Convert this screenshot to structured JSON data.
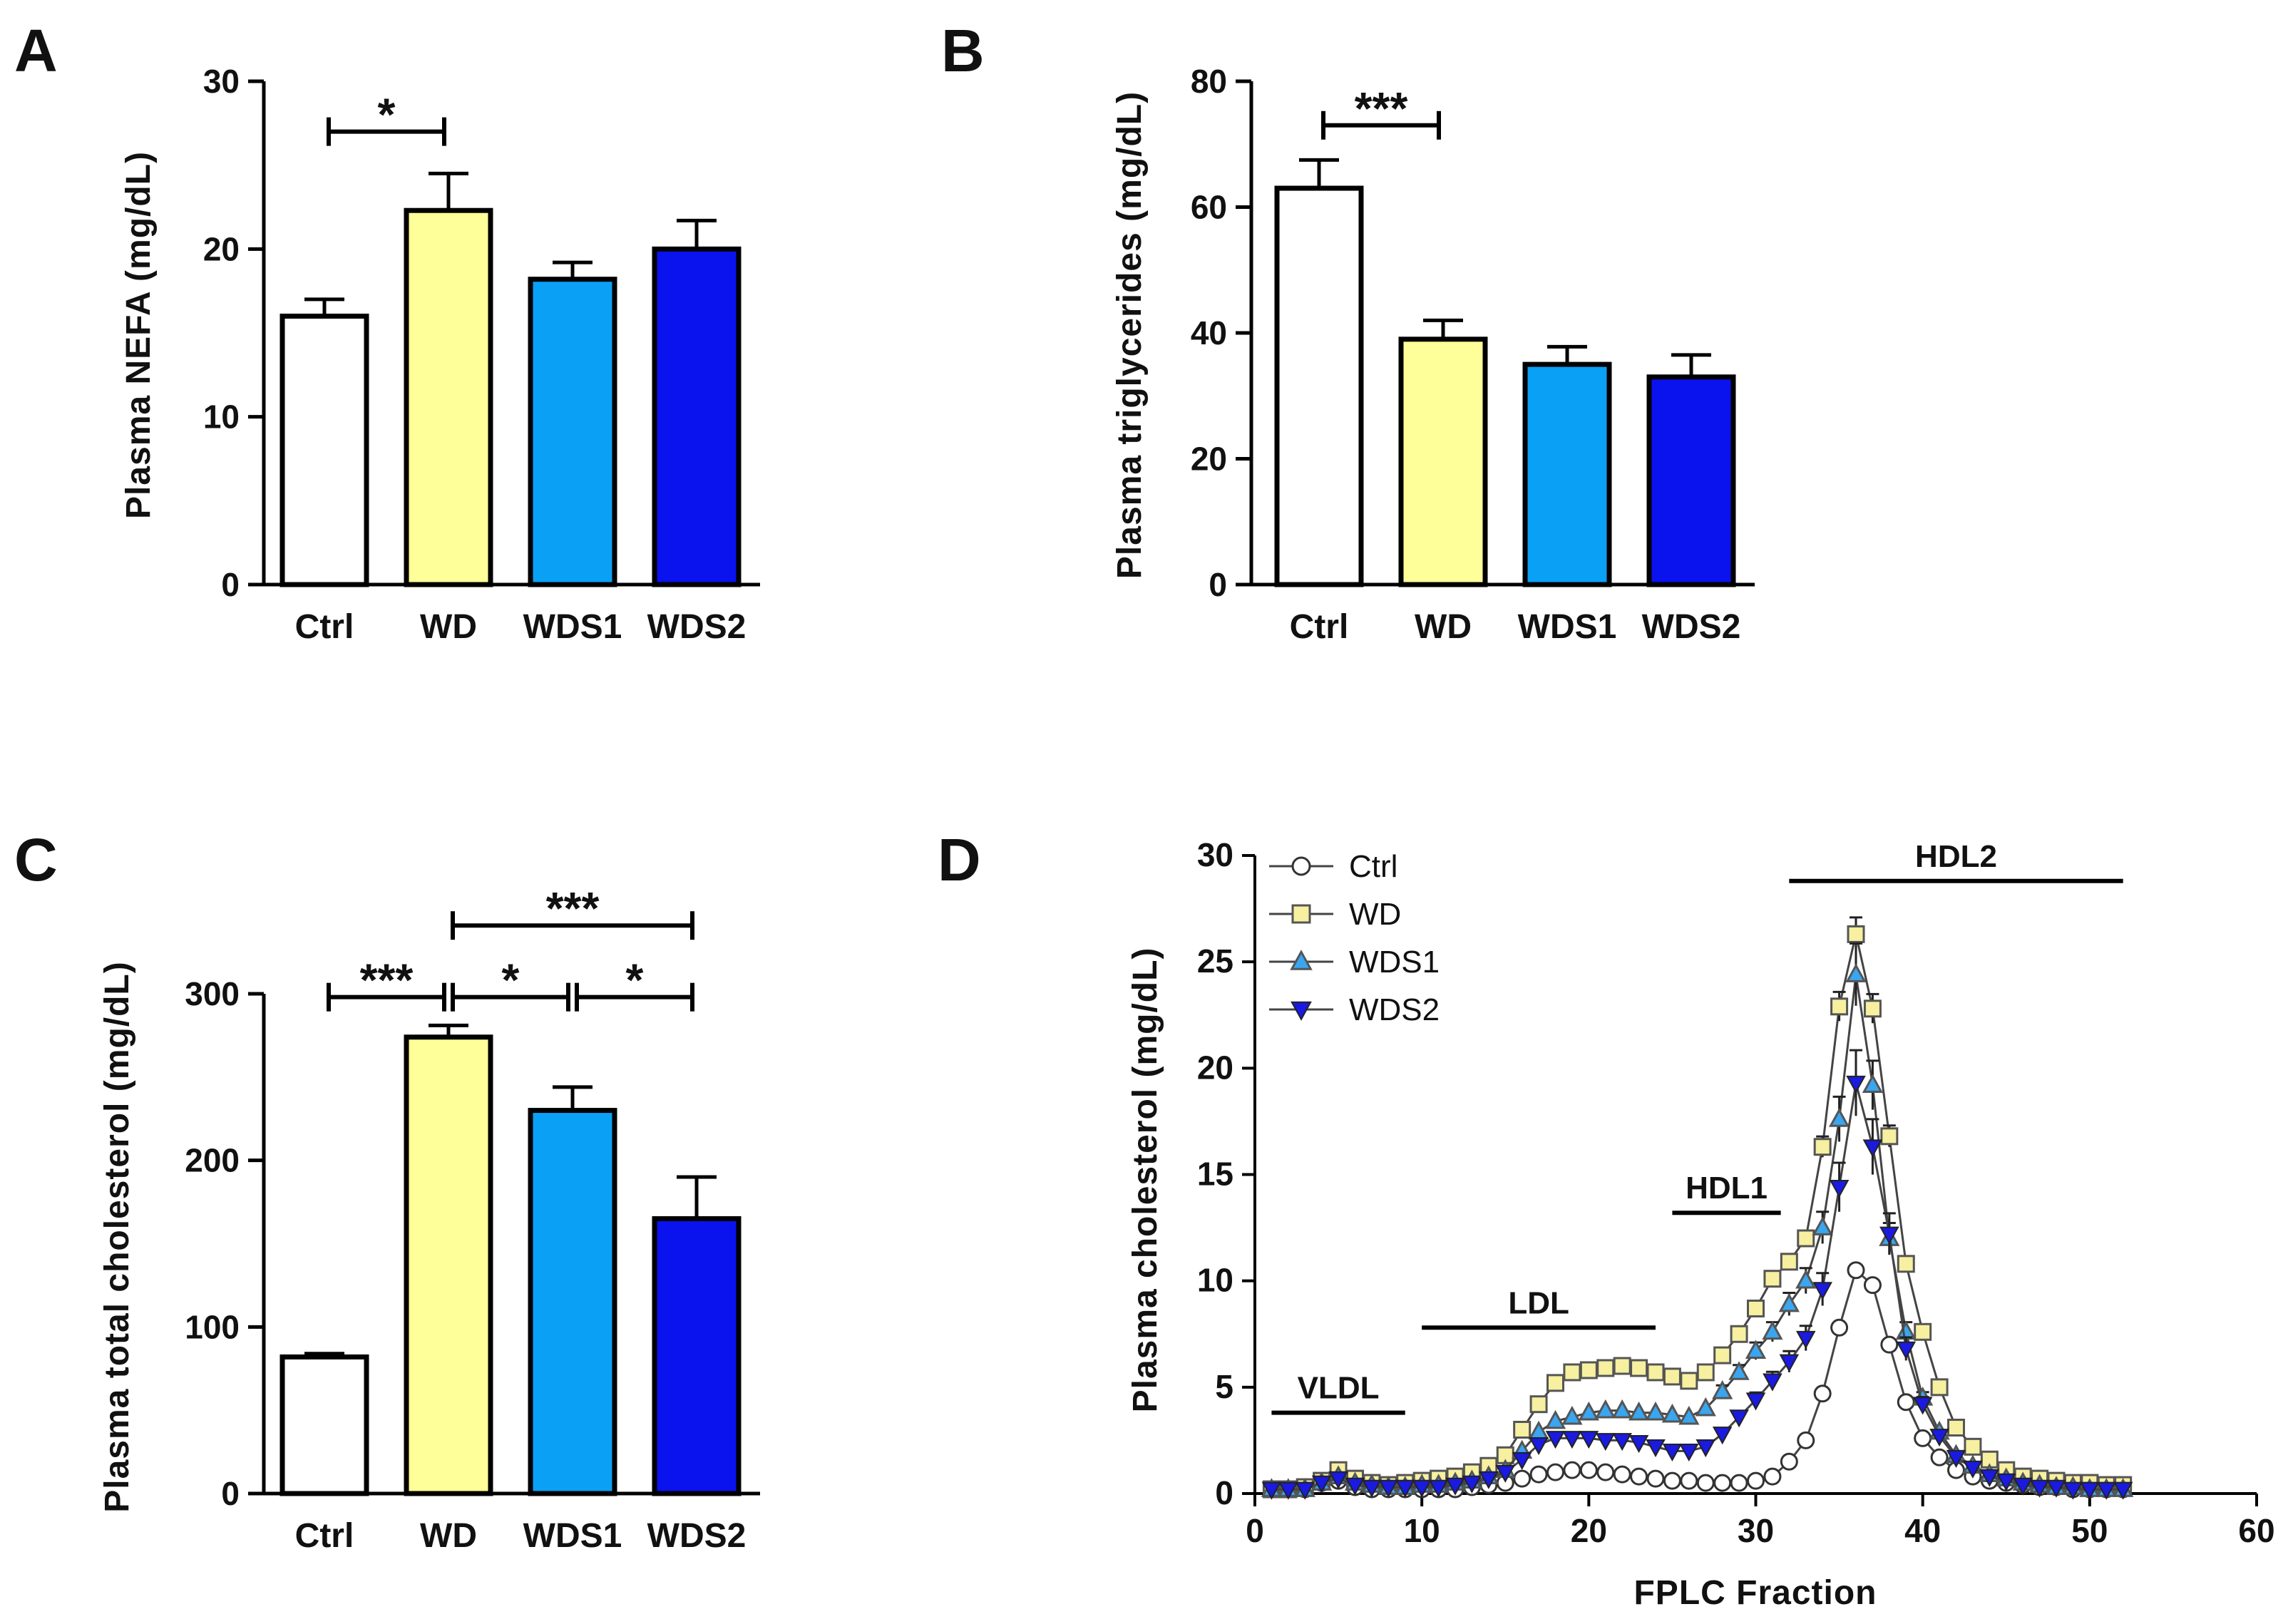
{
  "colors": {
    "Ctrl": "#ffffff",
    "WD": "#ffff99",
    "WDS1": "#0aa0f5",
    "WDS2": "#0a12ee",
    "WD_marker": "#f6f0a0",
    "WDS1_marker": "#3aa6f0",
    "WDS2_marker": "#1a1ae0",
    "axis": "#000000"
  },
  "chart_data": [
    {
      "panel": "A",
      "type": "bar",
      "categories": [
        "Ctrl",
        "WD",
        "WDS1",
        "WDS2"
      ],
      "values": [
        16,
        22.3,
        18.2,
        20
      ],
      "errors": [
        1,
        2.2,
        1,
        1.7
      ],
      "ylabel": "Plasma NEFA (mg/dL)",
      "ylim": [
        0,
        30
      ],
      "yticks": [
        0,
        10,
        20,
        30
      ],
      "significance": [
        {
          "from": 0,
          "to": 1,
          "label": "*",
          "level": 27
        }
      ]
    },
    {
      "panel": "B",
      "type": "bar",
      "categories": [
        "Ctrl",
        "WD",
        "WDS1",
        "WDS2"
      ],
      "values": [
        63,
        39,
        35,
        33
      ],
      "errors": [
        4.5,
        3,
        2.8,
        3.5
      ],
      "ylabel": "Plasma triglycerides (mg/dL)",
      "ylim": [
        0,
        80
      ],
      "yticks": [
        0,
        20,
        40,
        60,
        80
      ],
      "significance": [
        {
          "from": 0,
          "to": 1,
          "label": "***",
          "level": 73
        }
      ]
    },
    {
      "panel": "C",
      "type": "bar",
      "categories": [
        "Ctrl",
        "WD",
        "WDS1",
        "WDS2"
      ],
      "values": [
        82,
        274,
        230,
        165
      ],
      "errors": [
        2,
        7,
        14,
        25
      ],
      "ylabel": "Plasma total cholesterol (mg/dL)",
      "ylim": [
        0,
        300
      ],
      "yticks": [
        0,
        100,
        200,
        300
      ],
      "significance": [
        {
          "from": 0,
          "to": 1,
          "label": "***",
          "level": 298
        },
        {
          "from": 1,
          "to": 2,
          "label": "*",
          "level": 298
        },
        {
          "from": 2,
          "to": 3,
          "label": "*",
          "level": 298
        },
        {
          "from": 1,
          "to": 3,
          "label": "***",
          "level": 341
        }
      ]
    },
    {
      "panel": "D",
      "type": "line",
      "xlabel": "FPLC Fraction",
      "ylabel": "Plasma cholesterol (mg/dL)",
      "xlim": [
        0,
        60
      ],
      "ylim": [
        0,
        30
      ],
      "xticks": [
        0,
        10,
        20,
        30,
        40,
        50,
        60
      ],
      "yticks": [
        0,
        5,
        10,
        15,
        20,
        25,
        30
      ],
      "legend": [
        "Ctrl",
        "WD",
        "WDS1",
        "WDS2"
      ],
      "regions": [
        {
          "label": "VLDL",
          "x_start": 1,
          "x_end": 9,
          "level": 3.8
        },
        {
          "label": "LDL",
          "x_start": 10,
          "x_end": 24,
          "level": 7.8
        },
        {
          "label": "HDL1",
          "x_start": 25,
          "x_end": 31.5,
          "level": 13.2
        },
        {
          "label": "HDL2",
          "x_start": 32,
          "x_end": 52,
          "level": 28.8
        }
      ],
      "x": [
        1,
        2,
        3,
        4,
        5,
        6,
        7,
        8,
        9,
        10,
        11,
        12,
        13,
        14,
        15,
        16,
        17,
        18,
        19,
        20,
        21,
        22,
        23,
        24,
        25,
        26,
        27,
        28,
        29,
        30,
        31,
        32,
        33,
        34,
        35,
        36,
        37,
        38,
        39,
        40,
        41,
        42,
        43,
        44,
        45,
        46,
        47,
        48,
        49,
        50,
        51,
        52
      ],
      "series": [
        {
          "name": "Ctrl",
          "marker": "circle",
          "values": [
            0.2,
            0.2,
            0.2,
            0.5,
            0.6,
            0.3,
            0.2,
            0.2,
            0.2,
            0.2,
            0.2,
            0.2,
            0.3,
            0.4,
            0.5,
            0.7,
            0.9,
            1.0,
            1.1,
            1.1,
            1.0,
            0.9,
            0.8,
            0.7,
            0.6,
            0.6,
            0.5,
            0.5,
            0.5,
            0.6,
            0.8,
            1.5,
            2.5,
            4.7,
            7.8,
            10.5,
            9.8,
            7.0,
            4.3,
            2.6,
            1.7,
            1.1,
            0.8,
            0.6,
            0.5,
            0.4,
            0.3,
            0.3,
            0.2,
            0.2,
            0.2,
            0.2
          ]
        },
        {
          "name": "WD",
          "marker": "square",
          "values": [
            0.2,
            0.2,
            0.3,
            0.6,
            1.1,
            0.7,
            0.5,
            0.4,
            0.5,
            0.6,
            0.7,
            0.8,
            1.0,
            1.3,
            1.8,
            3.0,
            4.2,
            5.2,
            5.7,
            5.8,
            5.9,
            6.0,
            5.9,
            5.7,
            5.5,
            5.3,
            5.7,
            6.5,
            7.5,
            8.7,
            10.1,
            10.9,
            12.0,
            16.3,
            22.9,
            26.3,
            22.8,
            16.8,
            10.8,
            7.6,
            5.0,
            3.1,
            2.2,
            1.6,
            1.1,
            0.8,
            0.7,
            0.6,
            0.5,
            0.5,
            0.4,
            0.4
          ]
        },
        {
          "name": "WDS1",
          "marker": "triangle-up",
          "values": [
            0.2,
            0.2,
            0.2,
            0.5,
            0.8,
            0.5,
            0.4,
            0.3,
            0.3,
            0.4,
            0.4,
            0.5,
            0.6,
            0.8,
            1.1,
            2.0,
            2.9,
            3.4,
            3.6,
            3.8,
            3.9,
            3.9,
            3.8,
            3.8,
            3.7,
            3.6,
            4.0,
            4.8,
            5.7,
            6.7,
            7.6,
            8.9,
            10.0,
            12.5,
            17.6,
            24.4,
            19.2,
            12.0,
            7.6,
            4.5,
            2.9,
            1.8,
            1.3,
            0.9,
            0.7,
            0.5,
            0.4,
            0.3,
            0.3,
            0.2,
            0.2,
            0.2
          ]
        },
        {
          "name": "WDS2",
          "marker": "triangle-down",
          "values": [
            0.2,
            0.2,
            0.2,
            0.5,
            0.7,
            0.4,
            0.3,
            0.3,
            0.3,
            0.3,
            0.3,
            0.4,
            0.5,
            0.7,
            1.0,
            1.6,
            2.3,
            2.6,
            2.6,
            2.6,
            2.5,
            2.5,
            2.4,
            2.2,
            2.0,
            2.0,
            2.2,
            2.8,
            3.6,
            4.4,
            5.3,
            6.2,
            7.3,
            9.6,
            14.4,
            19.3,
            16.3,
            12.2,
            6.8,
            4.2,
            2.7,
            1.7,
            1.2,
            0.8,
            0.6,
            0.4,
            0.3,
            0.3,
            0.2,
            0.2,
            0.2,
            0.2
          ]
        }
      ]
    }
  ]
}
